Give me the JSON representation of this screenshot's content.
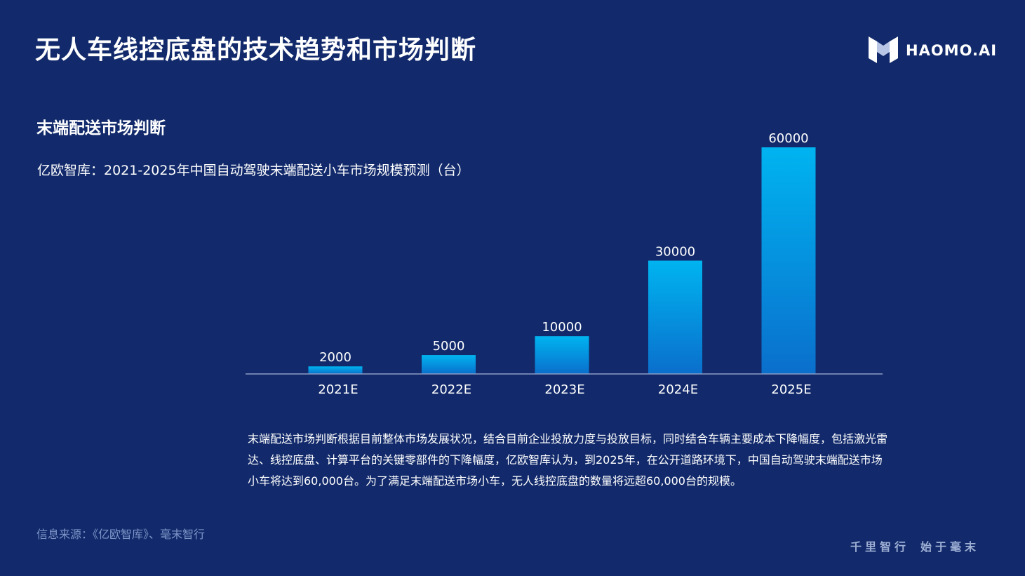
{
  "header": {
    "title": "无人车线控底盘的技术趋势和市场判断",
    "logo_text": "HAOMO.AI"
  },
  "section": {
    "title": "末端配送市场判断"
  },
  "chart_caption": "亿欧智库：2021-2025年中国自动驾驶末端配送小车市场规模预测（台）",
  "chart_data": {
    "type": "bar",
    "title": "亿欧智库：2021-2025年中国自动驾驶末端配送小车市场规模预测（台）",
    "categories": [
      "2021E",
      "2022E",
      "2023E",
      "2024E",
      "2025E"
    ],
    "values": [
      2000,
      5000,
      10000,
      30000,
      60000
    ],
    "data_labels": [
      "2000",
      "5000",
      "10000",
      "30000",
      "60000"
    ],
    "xlabel": "",
    "ylabel": "",
    "ylim": [
      0,
      60000
    ],
    "grid": false,
    "legend": "none",
    "bar_color_top": "#00b4f0",
    "bar_color_bottom": "#0a6fcc"
  },
  "description": "末端配送市场判断根据目前整体市场发展状况，结合目前企业投放力度与投放目标，同时结合车辆主要成本下降幅度，包括激光雷达、线控底盘、计算平台的关键零部件的下降幅度，亿欧智库认为，到2025年，在公开道路环境下，中国自动驾驶末端配送市场小车将达到60,000台。为了满足末端配送市场小车，无人线控底盘的数量将远超60,000台的规模。",
  "footer": {
    "source": "信息来源：《亿欧智库》、毫末智行",
    "slogan_left": "千里智行",
    "slogan_right": "始于毫末"
  },
  "colors": {
    "background": "#122a6b",
    "text": "#ffffff",
    "muted": "#7f96c8",
    "axis": "#8a9bc4"
  },
  "icons": {
    "logo": "haomo-logo-icon"
  }
}
